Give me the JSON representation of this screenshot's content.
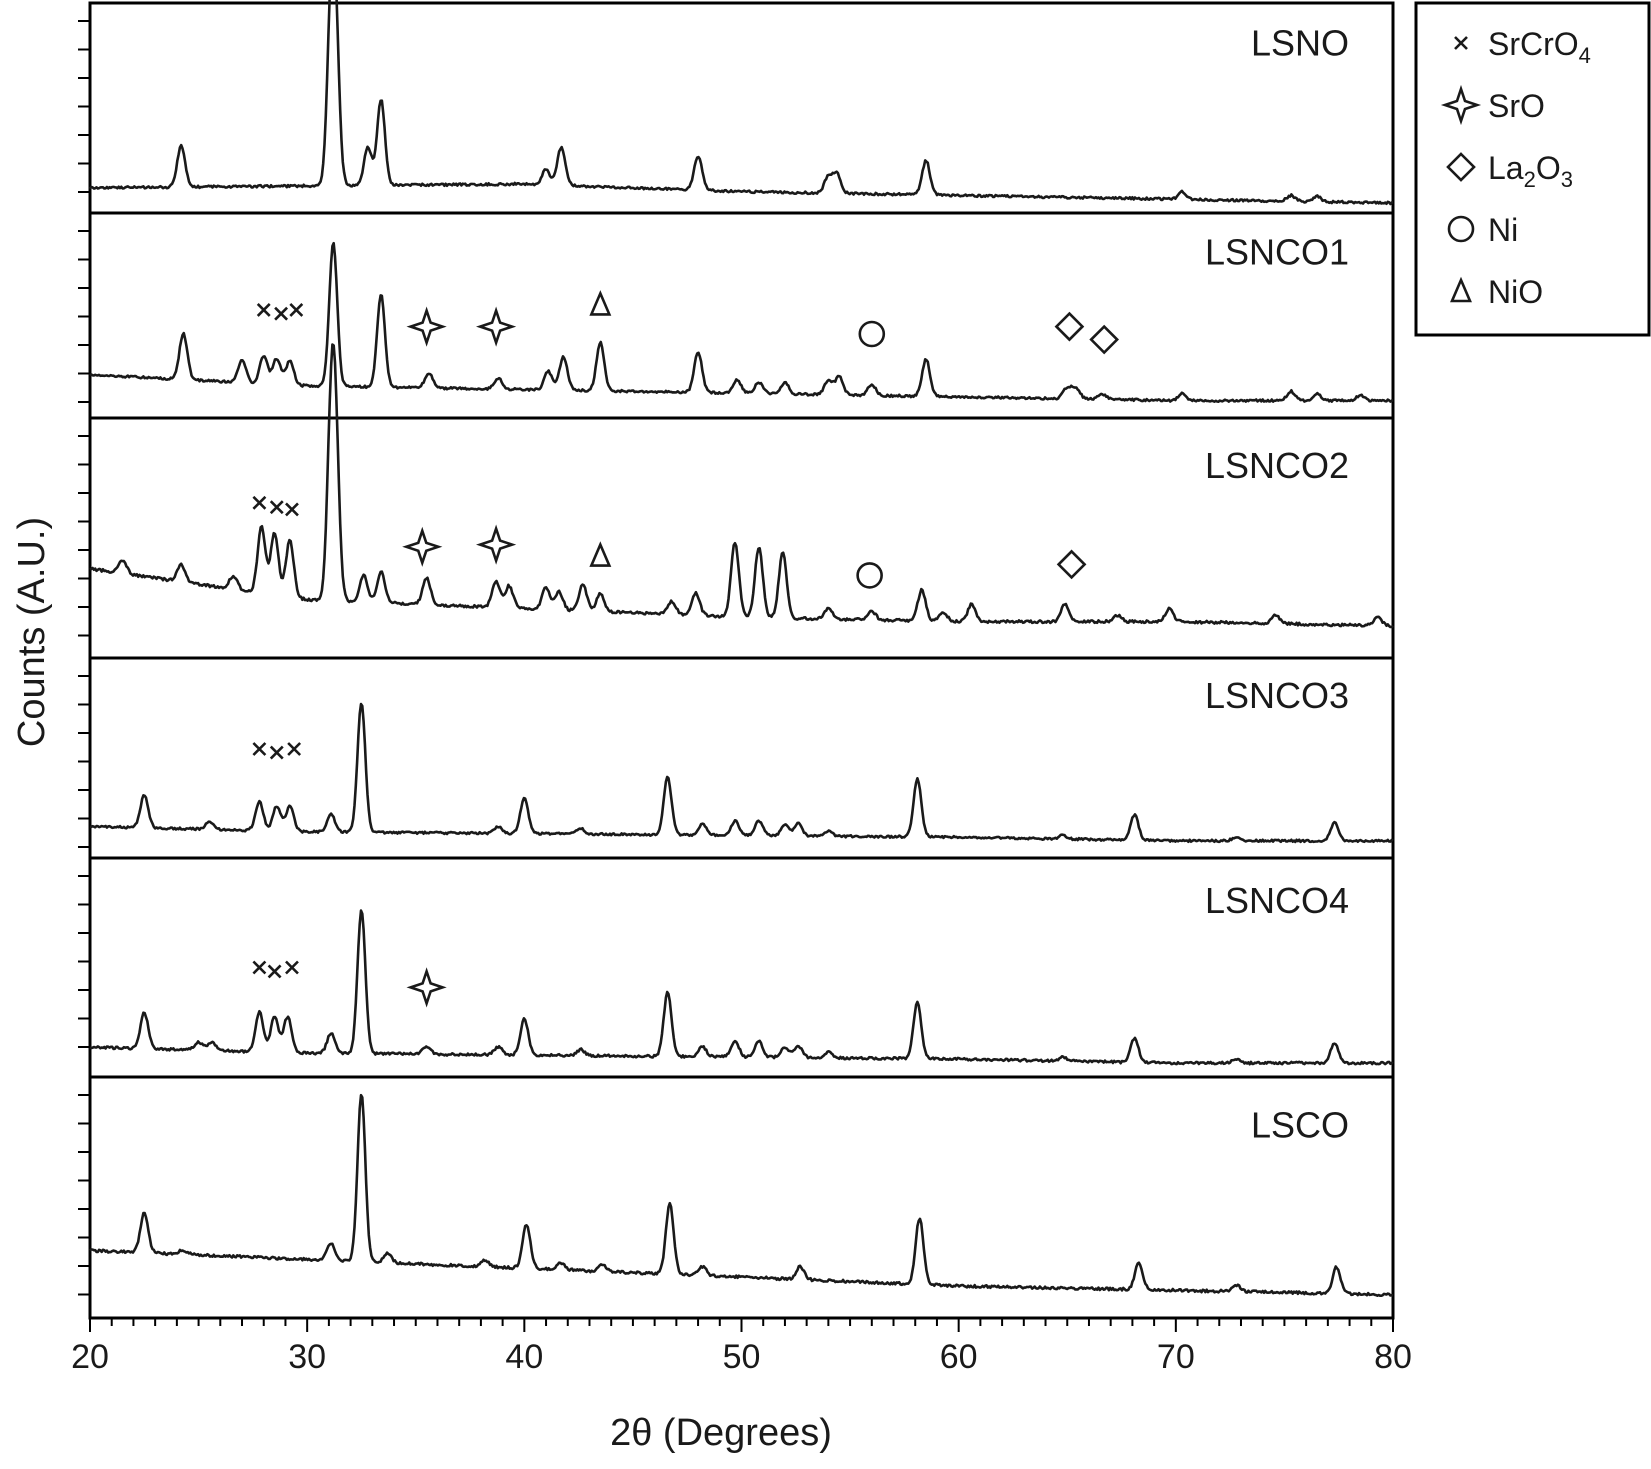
{
  "chart_data": {
    "type": "line",
    "xlabel": "2θ (Degrees)",
    "ylabel": "Counts (A.U.)",
    "xlim": [
      20,
      80
    ],
    "xticks": [
      20,
      30,
      40,
      50,
      60,
      70,
      80
    ],
    "legend": {
      "placement": "top-right outside",
      "entries": [
        {
          "symbol": "cross",
          "name": "SrCrO",
          "sub": "4",
          "sub2": ""
        },
        {
          "symbol": "star",
          "name": "SrO",
          "sub": "",
          "sub2": ""
        },
        {
          "symbol": "diamond",
          "name": "La",
          "sub": "2",
          "mid": "O",
          "sub2": "3"
        },
        {
          "symbol": "circle",
          "name": "Ni",
          "sub": "",
          "sub2": ""
        },
        {
          "symbol": "triangle",
          "name": "NiO",
          "sub": "",
          "sub2": ""
        }
      ]
    },
    "series": [
      {
        "name": "LSNO",
        "baseline": [
          [
            20,
            0.08
          ],
          [
            30,
            0.09
          ],
          [
            40,
            0.1
          ],
          [
            50,
            0.06
          ],
          [
            60,
            0.04
          ],
          [
            70,
            0.02
          ],
          [
            80,
            0.0
          ]
        ],
        "peaks": [
          [
            24.2,
            0.22
          ],
          [
            31.1,
            0.8
          ],
          [
            31.3,
            0.72
          ],
          [
            32.8,
            0.2
          ],
          [
            33.4,
            0.45
          ],
          [
            41.0,
            0.08
          ],
          [
            41.7,
            0.2
          ],
          [
            48.0,
            0.18
          ],
          [
            54.0,
            0.09
          ],
          [
            54.4,
            0.1
          ],
          [
            58.5,
            0.18
          ],
          [
            70.3,
            0.04
          ],
          [
            75.3,
            0.03
          ],
          [
            76.5,
            0.03
          ]
        ],
        "markers": []
      },
      {
        "name": "LSNCO1",
        "baseline": [
          [
            20,
            0.18
          ],
          [
            30,
            0.12
          ],
          [
            40,
            0.1
          ],
          [
            50,
            0.08
          ],
          [
            60,
            0.06
          ],
          [
            70,
            0.04
          ],
          [
            80,
            0.04
          ]
        ],
        "peaks": [
          [
            24.3,
            0.25
          ],
          [
            27.0,
            0.12
          ],
          [
            28.0,
            0.15
          ],
          [
            28.6,
            0.14
          ],
          [
            29.2,
            0.13
          ],
          [
            31.2,
            0.78
          ],
          [
            33.4,
            0.5
          ],
          [
            35.6,
            0.08
          ],
          [
            38.8,
            0.06
          ],
          [
            41.1,
            0.1
          ],
          [
            41.8,
            0.18
          ],
          [
            43.5,
            0.26
          ],
          [
            48.0,
            0.22
          ],
          [
            49.8,
            0.07
          ],
          [
            50.8,
            0.06
          ],
          [
            52.0,
            0.06
          ],
          [
            54.0,
            0.08
          ],
          [
            54.5,
            0.1
          ],
          [
            56.0,
            0.06
          ],
          [
            58.5,
            0.2
          ],
          [
            65.0,
            0.06
          ],
          [
            65.4,
            0.06
          ],
          [
            66.6,
            0.03
          ],
          [
            70.3,
            0.04
          ],
          [
            75.3,
            0.05
          ],
          [
            76.5,
            0.04
          ],
          [
            78.5,
            0.03
          ]
        ],
        "markers": [
          {
            "symbol": "cross",
            "x": 28.0,
            "ypos": 0.53
          },
          {
            "symbol": "cross",
            "x": 28.8,
            "ypos": 0.51
          },
          {
            "symbol": "cross",
            "x": 29.5,
            "ypos": 0.53
          },
          {
            "symbol": "star",
            "x": 35.5,
            "ypos": 0.44
          },
          {
            "symbol": "star",
            "x": 38.7,
            "ypos": 0.44
          },
          {
            "symbol": "triangle",
            "x": 43.5,
            "ypos": 0.56
          },
          {
            "symbol": "circle",
            "x": 56.0,
            "ypos": 0.4
          },
          {
            "symbol": "diamond",
            "x": 65.1,
            "ypos": 0.44
          },
          {
            "symbol": "diamond",
            "x": 66.7,
            "ypos": 0.37
          }
        ]
      },
      {
        "name": "LSNCO2",
        "baseline": [
          [
            20,
            0.36
          ],
          [
            30,
            0.22
          ],
          [
            40,
            0.18
          ],
          [
            50,
            0.14
          ],
          [
            60,
            0.12
          ],
          [
            70,
            0.12
          ],
          [
            80,
            0.1
          ]
        ],
        "peaks": [
          [
            21.5,
            0.06
          ],
          [
            24.2,
            0.08
          ],
          [
            26.6,
            0.06
          ],
          [
            27.9,
            0.3
          ],
          [
            28.5,
            0.28
          ],
          [
            29.2,
            0.26
          ],
          [
            31.1,
            0.72
          ],
          [
            31.3,
            0.65
          ],
          [
            32.6,
            0.12
          ],
          [
            33.4,
            0.14
          ],
          [
            35.5,
            0.12
          ],
          [
            38.7,
            0.12
          ],
          [
            39.3,
            0.1
          ],
          [
            41.0,
            0.1
          ],
          [
            41.6,
            0.08
          ],
          [
            42.7,
            0.12
          ],
          [
            43.5,
            0.08
          ],
          [
            46.8,
            0.06
          ],
          [
            47.9,
            0.1
          ],
          [
            49.7,
            0.34
          ],
          [
            50.8,
            0.32
          ],
          [
            51.9,
            0.3
          ],
          [
            54.0,
            0.05
          ],
          [
            56.0,
            0.04
          ],
          [
            58.3,
            0.14
          ],
          [
            59.3,
            0.04
          ],
          [
            60.6,
            0.08
          ],
          [
            64.9,
            0.08
          ],
          [
            67.3,
            0.03
          ],
          [
            69.7,
            0.06
          ],
          [
            74.6,
            0.04
          ],
          [
            79.3,
            0.04
          ]
        ],
        "markers": [
          {
            "symbol": "cross",
            "x": 27.8,
            "ypos": 0.66
          },
          {
            "symbol": "cross",
            "x": 28.6,
            "ypos": 0.64
          },
          {
            "symbol": "cross",
            "x": 29.3,
            "ypos": 0.63
          },
          {
            "symbol": "star",
            "x": 35.3,
            "ypos": 0.46
          },
          {
            "symbol": "star",
            "x": 38.7,
            "ypos": 0.47
          },
          {
            "symbol": "triangle",
            "x": 43.5,
            "ypos": 0.42
          },
          {
            "symbol": "circle",
            "x": 55.9,
            "ypos": 0.33
          },
          {
            "symbol": "diamond",
            "x": 65.2,
            "ypos": 0.38
          }
        ]
      },
      {
        "name": "LSNCO3",
        "baseline": [
          [
            20,
            0.12
          ],
          [
            30,
            0.09
          ],
          [
            40,
            0.08
          ],
          [
            50,
            0.07
          ],
          [
            60,
            0.06
          ],
          [
            70,
            0.04
          ],
          [
            80,
            0.04
          ]
        ],
        "peaks": [
          [
            22.5,
            0.18
          ],
          [
            25.5,
            0.04
          ],
          [
            27.8,
            0.16
          ],
          [
            28.6,
            0.14
          ],
          [
            29.2,
            0.14
          ],
          [
            31.1,
            0.1
          ],
          [
            32.5,
            0.72
          ],
          [
            38.8,
            0.04
          ],
          [
            40.0,
            0.2
          ],
          [
            42.6,
            0.03
          ],
          [
            46.6,
            0.32
          ],
          [
            48.2,
            0.06
          ],
          [
            49.7,
            0.08
          ],
          [
            50.8,
            0.08
          ],
          [
            52.0,
            0.06
          ],
          [
            52.6,
            0.07
          ],
          [
            54.0,
            0.03
          ],
          [
            58.1,
            0.32
          ],
          [
            64.8,
            0.02
          ],
          [
            68.1,
            0.14
          ],
          [
            72.8,
            0.02
          ],
          [
            77.3,
            0.1
          ]
        ],
        "markers": [
          {
            "symbol": "cross",
            "x": 27.8,
            "ypos": 0.55
          },
          {
            "symbol": "cross",
            "x": 28.6,
            "ypos": 0.53
          },
          {
            "symbol": "cross",
            "x": 29.4,
            "ypos": 0.55
          }
        ]
      },
      {
        "name": "LSNCO4",
        "baseline": [
          [
            20,
            0.1
          ],
          [
            30,
            0.07
          ],
          [
            40,
            0.06
          ],
          [
            50,
            0.05
          ],
          [
            60,
            0.04
          ],
          [
            70,
            0.02
          ],
          [
            80,
            0.02
          ]
        ],
        "peaks": [
          [
            22.5,
            0.18
          ],
          [
            25.0,
            0.04
          ],
          [
            25.6,
            0.04
          ],
          [
            27.8,
            0.2
          ],
          [
            28.5,
            0.18
          ],
          [
            29.1,
            0.18
          ],
          [
            31.1,
            0.1
          ],
          [
            32.5,
            0.72
          ],
          [
            35.5,
            0.04
          ],
          [
            38.8,
            0.04
          ],
          [
            40.0,
            0.18
          ],
          [
            42.6,
            0.03
          ],
          [
            46.6,
            0.32
          ],
          [
            48.2,
            0.05
          ],
          [
            49.7,
            0.08
          ],
          [
            50.8,
            0.08
          ],
          [
            52.0,
            0.05
          ],
          [
            52.6,
            0.06
          ],
          [
            54.0,
            0.03
          ],
          [
            58.1,
            0.28
          ],
          [
            64.8,
            0.02
          ],
          [
            68.1,
            0.12
          ],
          [
            72.8,
            0.02
          ],
          [
            77.3,
            0.1
          ]
        ],
        "markers": [
          {
            "symbol": "cross",
            "x": 27.8,
            "ypos": 0.5
          },
          {
            "symbol": "cross",
            "x": 28.5,
            "ypos": 0.48
          },
          {
            "symbol": "cross",
            "x": 29.3,
            "ypos": 0.5
          },
          {
            "symbol": "star",
            "x": 35.5,
            "ypos": 0.4
          }
        ]
      },
      {
        "name": "LSCO",
        "baseline": [
          [
            20,
            0.26
          ],
          [
            30,
            0.22
          ],
          [
            40,
            0.18
          ],
          [
            50,
            0.14
          ],
          [
            60,
            0.1
          ],
          [
            70,
            0.08
          ],
          [
            80,
            0.06
          ]
        ],
        "peaks": [
          [
            22.5,
            0.18
          ],
          [
            24.3,
            0.02
          ],
          [
            31.1,
            0.08
          ],
          [
            32.5,
            0.76
          ],
          [
            33.7,
            0.04
          ],
          [
            38.2,
            0.03
          ],
          [
            40.1,
            0.2
          ],
          [
            41.7,
            0.03
          ],
          [
            43.6,
            0.03
          ],
          [
            46.7,
            0.32
          ],
          [
            48.2,
            0.04
          ],
          [
            52.7,
            0.06
          ],
          [
            58.2,
            0.3
          ],
          [
            68.3,
            0.12
          ],
          [
            72.8,
            0.03
          ],
          [
            77.4,
            0.12
          ]
        ],
        "markers": []
      }
    ]
  }
}
